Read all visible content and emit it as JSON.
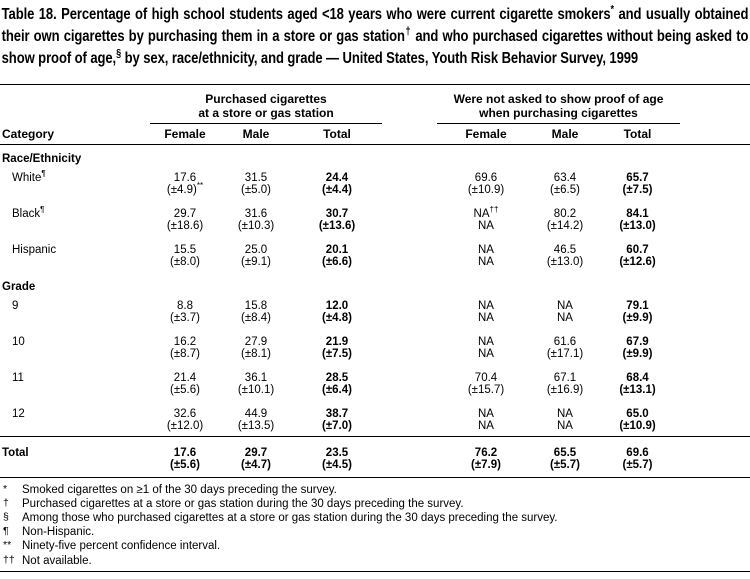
{
  "title": "Table 18. Percentage of high school students aged <18 years who were current cigarette smokers* and usually obtained their own cigarettes by purchasing them in a store or gas station† and who purchased cigarettes without being asked to show proof of age,§ by sex, race/ethnicity, and grade — United States, Youth Risk Behavior Survey, 1999",
  "table": {
    "group_headers": [
      {
        "lines": [
          "Purchased cigarettes",
          "at a store or gas station"
        ]
      },
      {
        "lines": [
          "Were not asked to show proof of age",
          "when purchasing cigarettes"
        ]
      }
    ],
    "column_headers": [
      "Category",
      "Female",
      "Male",
      "Total",
      "Female",
      "Male",
      "Total"
    ],
    "rows": [
      {
        "type": "section",
        "label": "Race/Ethnicity"
      },
      {
        "type": "data",
        "label": "White¶",
        "values": [
          "17.6",
          "31.5",
          "24.4",
          "69.6",
          "63.4",
          "65.7"
        ],
        "ci": [
          "(±4.9)**",
          "(±5.0)",
          "(±4.4)",
          "(±10.9)",
          "(±6.5)",
          "(±7.5)"
        ]
      },
      {
        "type": "data",
        "label": "Black¶",
        "values": [
          "29.7",
          "31.6",
          "30.7",
          "NA††",
          "80.2",
          "84.1"
        ],
        "ci": [
          "(±18.6)",
          "(±10.3)",
          "(±13.6)",
          "NA",
          "(±14.2)",
          "(±13.0)"
        ]
      },
      {
        "type": "data",
        "label": "Hispanic",
        "values": [
          "15.5",
          "25.0",
          "20.1",
          "NA",
          "46.5",
          "60.7"
        ],
        "ci": [
          "(±8.0)",
          "(±9.1)",
          "(±6.6)",
          "NA",
          "(±13.0)",
          "(±12.6)"
        ]
      },
      {
        "type": "section",
        "label": "Grade"
      },
      {
        "type": "data",
        "label": "9",
        "values": [
          "8.8",
          "15.8",
          "12.0",
          "NA",
          "NA",
          "79.1"
        ],
        "ci": [
          "(±3.7)",
          "(±8.4)",
          "(±4.8)",
          "NA",
          "NA",
          "(±9.9)"
        ]
      },
      {
        "type": "data",
        "label": "10",
        "values": [
          "16.2",
          "27.9",
          "21.9",
          "NA",
          "61.6",
          "67.9"
        ],
        "ci": [
          "(±8.7)",
          "(±8.1)",
          "(±7.5)",
          "NA",
          "(±17.1)",
          "(±9.9)"
        ]
      },
      {
        "type": "data",
        "label": "11",
        "values": [
          "21.4",
          "36.1",
          "28.5",
          "70.4",
          "67.1",
          "68.4"
        ],
        "ci": [
          "(±5.6)",
          "(±10.1)",
          "(±6.4)",
          "(±15.7)",
          "(±16.9)",
          "(±13.1)"
        ]
      },
      {
        "type": "data",
        "label": "12",
        "values": [
          "32.6",
          "44.9",
          "38.7",
          "NA",
          "NA",
          "65.0"
        ],
        "ci": [
          "(±12.0)",
          "(±13.5)",
          "(±7.0)",
          "NA",
          "NA",
          "(±10.9)"
        ]
      },
      {
        "type": "total",
        "label": "Total",
        "values": [
          "17.6",
          "29.7",
          "23.5",
          "76.2",
          "65.5",
          "69.6"
        ],
        "ci": [
          "(±5.6)",
          "(±4.7)",
          "(±4.5)",
          "(±7.9)",
          "(±5.7)",
          "(±5.7)"
        ]
      }
    ]
  },
  "footnotes": [
    {
      "marker": "*",
      "text": "Smoked cigarettes on ≥1 of the 30 days preceding the survey."
    },
    {
      "marker": "†",
      "text": "Purchased cigarettes at a store or gas station during the 30 days preceding the survey."
    },
    {
      "marker": "§",
      "text": "Among those who purchased cigarettes at a store or gas station during the 30 days preceding the survey."
    },
    {
      "marker": "¶",
      "text": "Non-Hispanic."
    },
    {
      "marker": "**",
      "text": "Ninety-five percent confidence interval."
    },
    {
      "marker": "††",
      "text": "Not available."
    }
  ],
  "colors": {
    "text": "#000000",
    "background": "#ffffff"
  }
}
